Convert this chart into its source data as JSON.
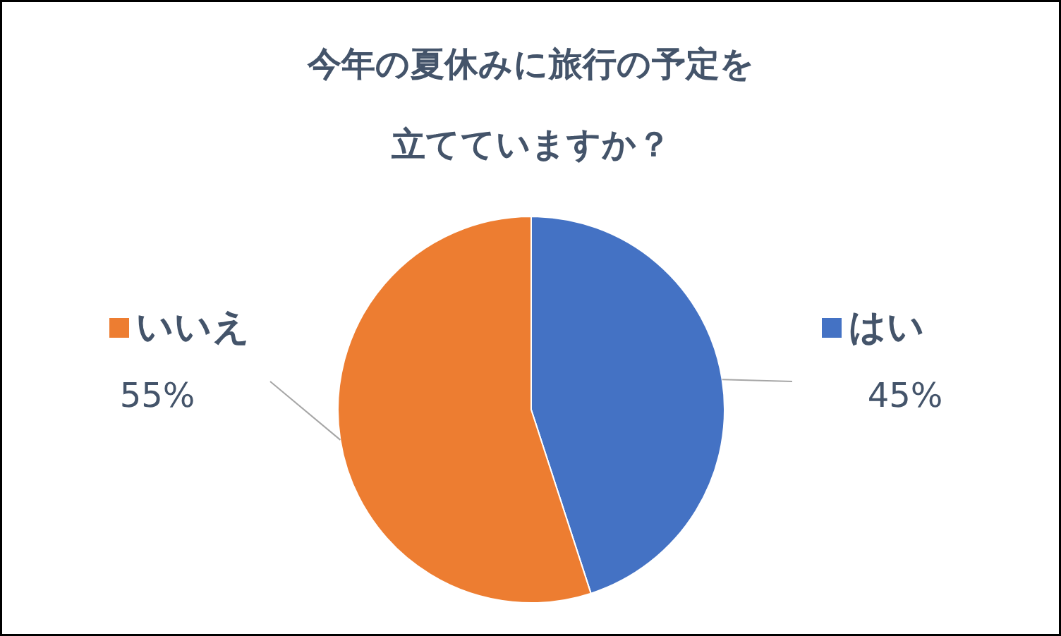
{
  "chart_data": {
    "type": "pie",
    "title": "今年の夏休みに旅行の予定を立てていますか？",
    "categories": [
      "はい",
      "いいえ"
    ],
    "values": [
      45,
      55
    ],
    "colors": [
      "#4472c4",
      "#ed7d31"
    ],
    "value_labels": [
      "45%",
      "55%"
    ],
    "legend": "right"
  }
}
